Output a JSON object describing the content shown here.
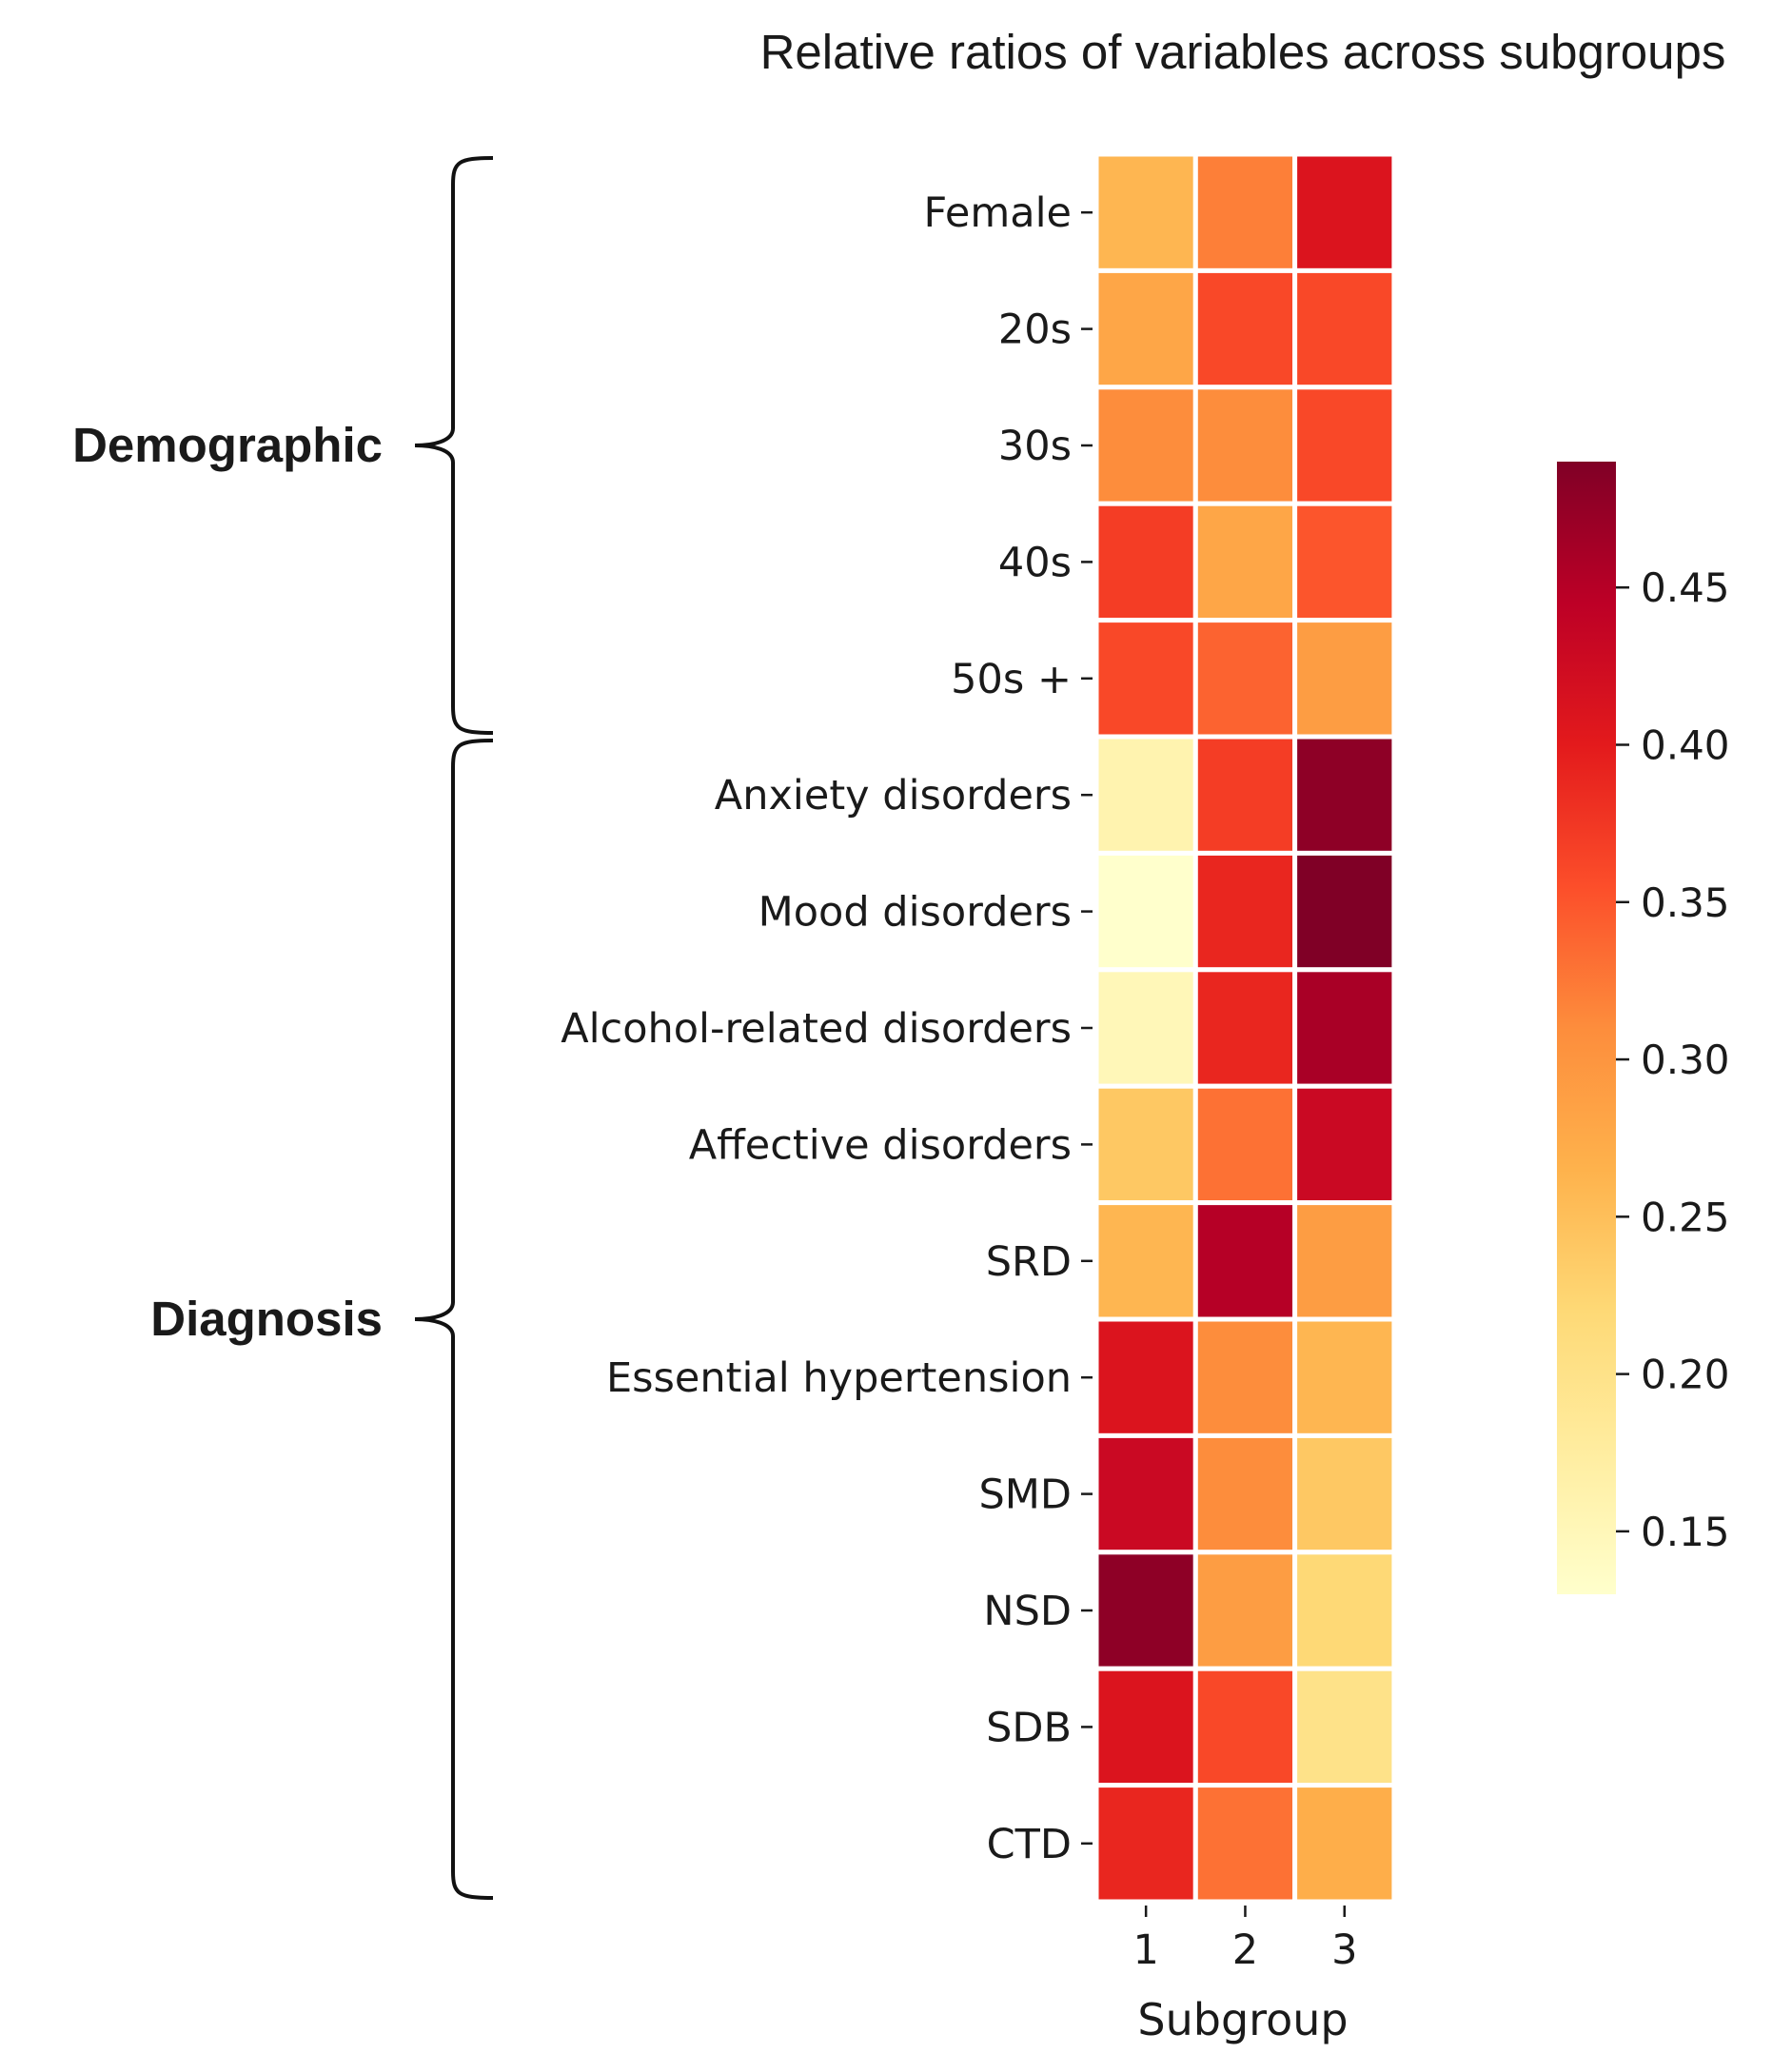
{
  "chart_data": {
    "type": "heatmap",
    "title": "Relative ratios of variables across subgroups",
    "xlabel": "Subgroup",
    "ylabel": "",
    "columns": [
      "1",
      "2",
      "3"
    ],
    "rows": [
      "Female",
      "20s",
      "30s",
      "40s",
      "50s +",
      "Anxiety disorders",
      "Mood disorders",
      "Alcohol-related disorders ",
      "Affective disorders",
      "SRD",
      "Essential hypertension",
      "SMD",
      "NSD",
      "SDB",
      "CTD"
    ],
    "values": [
      [
        0.26,
        0.32,
        0.41
      ],
      [
        0.28,
        0.36,
        0.36
      ],
      [
        0.31,
        0.31,
        0.36
      ],
      [
        0.37,
        0.28,
        0.35
      ],
      [
        0.36,
        0.34,
        0.29
      ],
      [
        0.16,
        0.37,
        0.48
      ],
      [
        0.13,
        0.39,
        0.49
      ],
      [
        0.15,
        0.39,
        0.46
      ],
      [
        0.24,
        0.33,
        0.43
      ],
      [
        0.26,
        0.45,
        0.29
      ],
      [
        0.41,
        0.31,
        0.26
      ],
      [
        0.43,
        0.31,
        0.24
      ],
      [
        0.48,
        0.29,
        0.22
      ],
      [
        0.41,
        0.36,
        0.2
      ],
      [
        0.39,
        0.33,
        0.27
      ]
    ],
    "groups": [
      {
        "label": "Demographic",
        "first_row": 0,
        "last_row": 4
      },
      {
        "label": "Diagnosis",
        "first_row": 5,
        "last_row": 14
      }
    ],
    "colorbar": {
      "colormap": "YlOrRd",
      "min": 0.13,
      "max": 0.49,
      "ticks": [
        0.15,
        0.2,
        0.25,
        0.3,
        0.35,
        0.4,
        0.45
      ],
      "tick_labels": [
        "0.15",
        "0.20",
        "0.25",
        "0.30",
        "0.35",
        "0.40",
        "0.45"
      ]
    }
  }
}
